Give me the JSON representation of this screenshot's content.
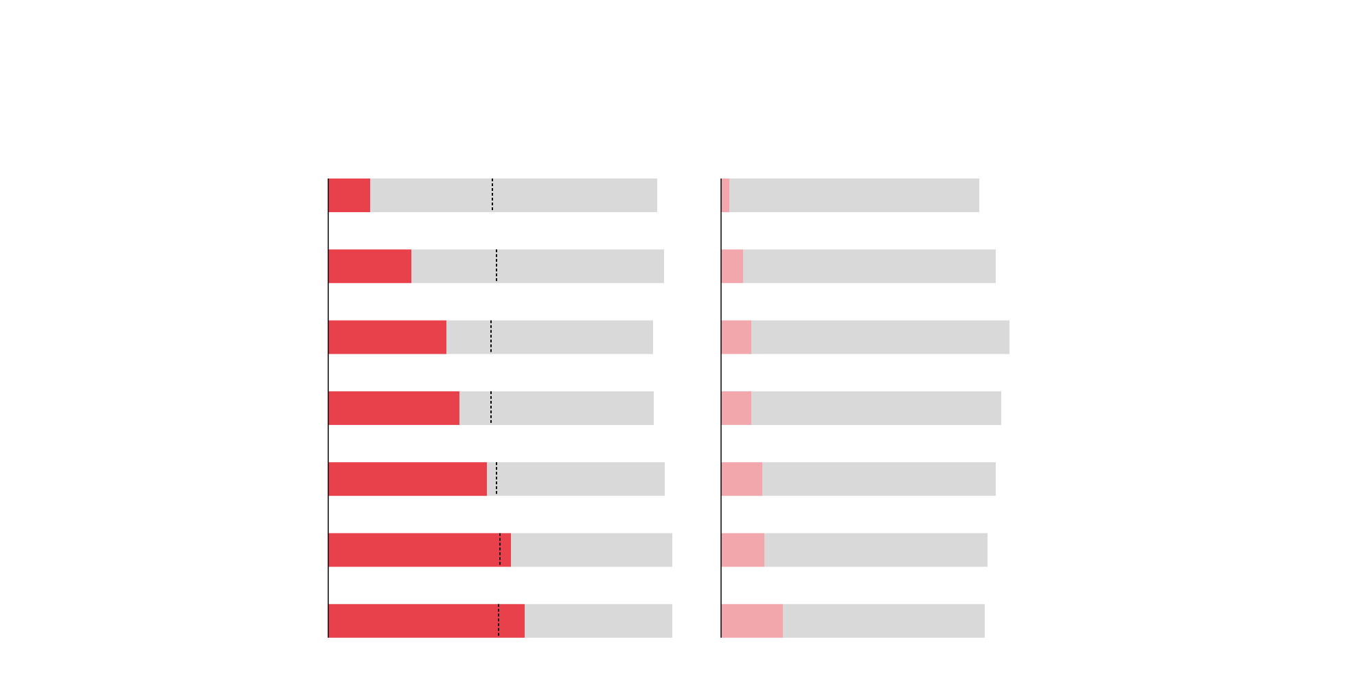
{
  "colors": {
    "background": "#ffffff",
    "track": "#d9d9d9",
    "axis": "#000000",
    "marker": "#000000",
    "left_fill": "#e8414b",
    "right_fill": "#f2a7ad"
  },
  "chart_data": [
    {
      "type": "bar",
      "orientation": "horizontal",
      "stacked": true,
      "grid": false,
      "legend": "none",
      "xlim": [
        0,
        480
      ],
      "series": [
        {
          "values": [
            61,
            121,
            172,
            191,
            231,
            266,
            286
          ]
        },
        {
          "values": [
            418,
            368,
            301,
            283,
            259,
            235,
            215
          ]
        }
      ],
      "marker": {
        "style": "dashed",
        "values": [
          239,
          245,
          237,
          237,
          245,
          250,
          248
        ]
      }
    },
    {
      "type": "bar",
      "orientation": "horizontal",
      "stacked": true,
      "grid": false,
      "legend": "none",
      "xlim": [
        0,
        480
      ],
      "series": [
        {
          "values": [
            12,
            32,
            44,
            44,
            60,
            63,
            90
          ]
        },
        {
          "values": [
            364,
            368,
            376,
            364,
            340,
            325,
            294
          ]
        }
      ]
    }
  ]
}
